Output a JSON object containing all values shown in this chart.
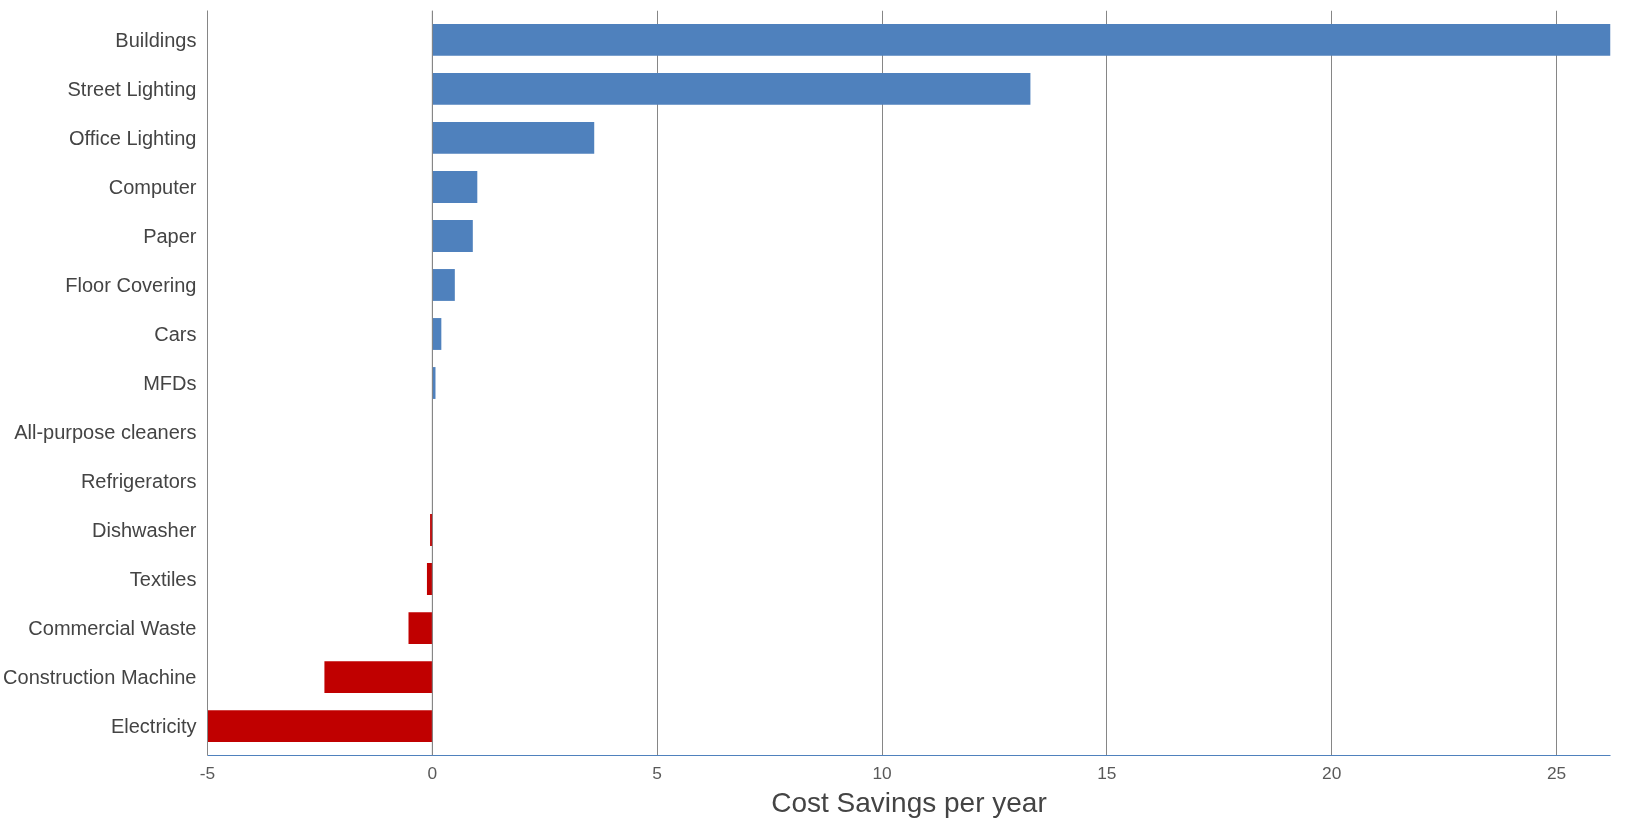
{
  "chart_data": {
    "type": "bar",
    "orientation": "horizontal",
    "xlabel": "Cost Savings per year",
    "categories": [
      "Buildings",
      "Street Lighting",
      "Office Lighting",
      "Computer",
      "Paper",
      "Floor Covering",
      "Cars",
      "MFDs",
      "All-purpose cleaners",
      "Refrigerators",
      "Dishwasher",
      "Textiles",
      "Commercial Waste",
      "Construction Machine",
      "Electricity"
    ],
    "values": [
      26.2,
      13.3,
      3.6,
      1.0,
      0.9,
      0.5,
      0.2,
      0.07,
      0,
      0,
      -0.05,
      -0.12,
      -0.53,
      -2.4,
      -5.0
    ],
    "colors": [
      "#4f81bd",
      "#4f81bd",
      "#4f81bd",
      "#4f81bd",
      "#4f81bd",
      "#4f81bd",
      "#4f81bd",
      "#4f81bd",
      "#4f81bd",
      "#4f81bd",
      "#c00000",
      "#c00000",
      "#c00000",
      "#c00000",
      "#c00000"
    ],
    "xlim": [
      -5,
      26.2
    ],
    "xticks": [
      -5,
      0,
      5,
      10,
      15,
      20,
      25
    ],
    "grid": "x"
  }
}
